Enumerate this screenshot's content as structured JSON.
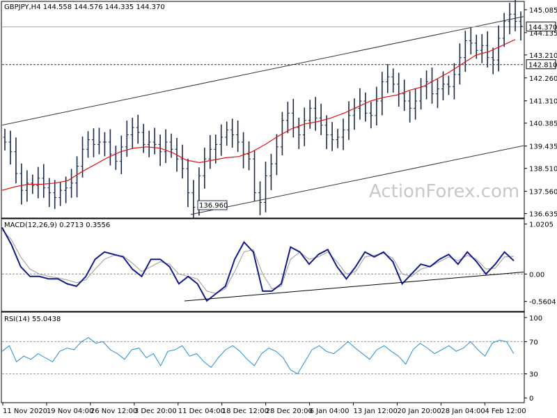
{
  "chart_data": {
    "type": "line",
    "price_panel": {
      "title": "GBPJPY,H4  144.558 144.576 144.335 144.370",
      "yticks": [
        145.085,
        144.135,
        143.21,
        142.26,
        141.31,
        140.385,
        139.435,
        138.51,
        137.56,
        136.635
      ],
      "ytick_labels": [
        "145.085",
        "144.135",
        "143.210",
        "142.260",
        "141.310",
        "140.385",
        "139.435",
        "138.510",
        "137.560",
        "136.635"
      ],
      "ylim": [
        136.48,
        145.4
      ],
      "current_price_label": "144.370",
      "current_price": 144.37,
      "level_label": "142.810",
      "level": 142.81,
      "low_label": "136.960",
      "low_value": 136.96,
      "watermark": "ActionForex.com",
      "price_closes": [
        139.6,
        139.2,
        138.3,
        137.6,
        137.9,
        137.8,
        138.1,
        137.7,
        137.5,
        137.3,
        137.6,
        137.7,
        137.9,
        138.6,
        139.3,
        139.7,
        139.5,
        139.6,
        139.6,
        139.1,
        138.8,
        139.4,
        139.9,
        140.2,
        140.0,
        139.5,
        139.6,
        139.5,
        139.2,
        139.6,
        139.3,
        138.9,
        138.5,
        137.5,
        136.9,
        138.2,
        138.9,
        139.3,
        139.5,
        139.8,
        140.1,
        139.9,
        139.6,
        139.1,
        138.9,
        137.5,
        137.1,
        138.2,
        138.7,
        139.4,
        140.5,
        140.8,
        140.2,
        139.9,
        140.5,
        141.0,
        140.6,
        140.3,
        139.9,
        139.7,
        139.8,
        140.1,
        140.7,
        141.0,
        141.3,
        140.8,
        140.7,
        141.3,
        142.1,
        142.3,
        142.0,
        141.6,
        141.3,
        141.0,
        141.3,
        141.9,
        142.1,
        141.6,
        141.8,
        142.0,
        141.9,
        142.4,
        143.1,
        143.8,
        143.7,
        143.4,
        143.6,
        143.1,
        143.0,
        143.9,
        144.6,
        144.9,
        144.6,
        144.4
      ],
      "ma_values": [
        137.6,
        137.75,
        137.85,
        137.85,
        137.9,
        138.0,
        138.35,
        138.65,
        138.95,
        139.2,
        139.35,
        139.4,
        139.35,
        139.15,
        138.85,
        138.75,
        138.85,
        138.95,
        139.0,
        139.2,
        139.5,
        139.85,
        140.15,
        140.35,
        140.45,
        140.6,
        140.8,
        141.05,
        141.3,
        141.45,
        141.55,
        141.75,
        141.9,
        142.2,
        142.5,
        142.85,
        143.2,
        143.35,
        143.6,
        143.85
      ],
      "channel_upper": [
        [
          0,
          140.3
        ],
        [
          93,
          144.8
        ]
      ],
      "channel_lower": [
        [
          34,
          136.6
        ],
        [
          93,
          139.45
        ]
      ]
    },
    "macd_panel": {
      "title": "MACD(12,26,9) 0.2713 0.3556",
      "yticks": [
        1.0205,
        0.0,
        -0.5604
      ],
      "ytick_labels": [
        "1.0205",
        "0.00",
        "-0.5604"
      ],
      "ylim": [
        -0.75,
        1.1
      ],
      "macd_values": [
        0.95,
        0.6,
        0.15,
        -0.05,
        -0.05,
        -0.1,
        -0.1,
        -0.2,
        -0.25,
        -0.05,
        0.3,
        0.45,
        0.4,
        0.35,
        0.1,
        -0.05,
        0.3,
        0.3,
        0.15,
        -0.2,
        -0.05,
        -0.2,
        -0.55,
        -0.4,
        -0.25,
        0.3,
        0.65,
        0.45,
        -0.35,
        -0.35,
        -0.2,
        0.55,
        0.45,
        0.2,
        0.4,
        0.5,
        0.15,
        -0.1,
        0.15,
        0.45,
        0.35,
        0.45,
        0.25,
        -0.2,
        0.0,
        0.2,
        0.15,
        0.3,
        0.4,
        0.2,
        0.45,
        0.25,
        0.0,
        0.2,
        0.45,
        0.27
      ],
      "signal_values": [
        0.9,
        0.7,
        0.35,
        0.1,
        0.0,
        -0.05,
        -0.08,
        -0.12,
        -0.18,
        -0.12,
        0.1,
        0.3,
        0.38,
        0.37,
        0.22,
        0.05,
        0.15,
        0.25,
        0.2,
        0.0,
        -0.05,
        -0.1,
        -0.35,
        -0.4,
        -0.3,
        0.05,
        0.45,
        0.5,
        0.0,
        -0.3,
        -0.25,
        0.3,
        0.45,
        0.3,
        0.35,
        0.45,
        0.25,
        0.0,
        0.05,
        0.35,
        0.38,
        0.42,
        0.32,
        0.0,
        -0.05,
        0.1,
        0.15,
        0.25,
        0.35,
        0.27,
        0.38,
        0.3,
        0.1,
        0.12,
        0.35,
        0.36
      ],
      "trendline": [
        [
          -0.55,
          -0.55
        ],
        [
          1.0,
          -0.05
        ]
      ]
    },
    "rsi_panel": {
      "title": "RSI(14) 55.0438",
      "yticks": [
        100,
        70,
        30,
        0
      ],
      "ytick_labels": [
        "100",
        "70",
        "30",
        "0"
      ],
      "ylim": [
        -5,
        105
      ],
      "dashed_levels": [
        70,
        30
      ],
      "rsi_values": [
        58,
        65,
        45,
        52,
        48,
        55,
        50,
        45,
        58,
        62,
        60,
        70,
        75,
        68,
        70,
        60,
        55,
        48,
        60,
        62,
        50,
        55,
        40,
        58,
        60,
        65,
        52,
        55,
        45,
        38,
        50,
        60,
        65,
        58,
        48,
        40,
        55,
        62,
        58,
        50,
        35,
        30,
        45,
        60,
        65,
        58,
        55,
        62,
        70,
        62,
        55,
        48,
        60,
        65,
        58,
        52,
        42,
        60,
        68,
        62,
        55,
        60,
        65,
        58,
        62,
        70,
        60,
        52,
        68,
        72,
        70,
        55
      ]
    },
    "x_tick_labels": [
      "11 Nov 2020",
      "19 Nov 04:00",
      "26 Nov 12:00",
      "3 Dec 20:00",
      "11 Dec 04:00",
      "18 Dec 12:00",
      "28 Dec 20:00",
      "6 Jan 04:00",
      "13 Jan 12:00",
      "20 Jan 20:00",
      "28 Jan 04:00",
      "4 Feb 12:00"
    ]
  }
}
